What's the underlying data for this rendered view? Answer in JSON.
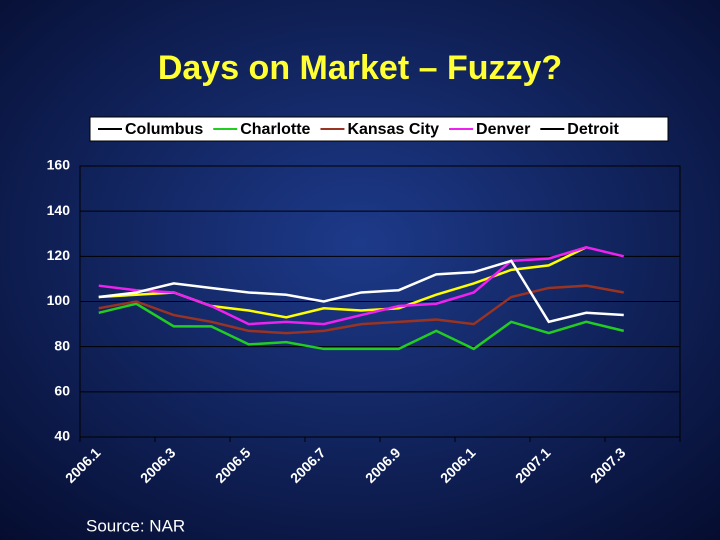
{
  "chart_data": {
    "type": "line",
    "title": "Days on Market – Fuzzy?",
    "source": "Source: NAR",
    "categories": [
      "2006.1",
      null,
      "2006.3",
      null,
      "2006.5",
      null,
      "2006.7",
      null,
      "2006.9",
      null,
      "2006.1",
      null,
      "2007.1",
      null,
      "2007.3",
      null
    ],
    "series": [
      {
        "name": "Columbus",
        "color": "#ffff00",
        "values": [
          102,
          103,
          104,
          98,
          96,
          93,
          97,
          96,
          97,
          103,
          108,
          114,
          116,
          124,
          null,
          null
        ]
      },
      {
        "name": "Charlotte",
        "color": "#22cc22",
        "values": [
          95,
          99,
          89,
          89,
          81,
          82,
          79,
          79,
          79,
          87,
          79,
          91,
          86,
          91,
          87,
          null
        ]
      },
      {
        "name": "Kansas City",
        "color": "#993322",
        "values": [
          97,
          100,
          94,
          91,
          87,
          86,
          87,
          90,
          91,
          92,
          90,
          102,
          106,
          107,
          104,
          null
        ]
      },
      {
        "name": "Denver",
        "color": "#ee22ee",
        "values": [
          107,
          105,
          104,
          98,
          90,
          91,
          90,
          94,
          98,
          99,
          104,
          118,
          119,
          124,
          120,
          null
        ]
      },
      {
        "name": "Detroit",
        "color": "#ffffff",
        "values": [
          102,
          104,
          108,
          106,
          104,
          103,
          100,
          104,
          105,
          112,
          113,
          118,
          91,
          95,
          94,
          null
        ]
      }
    ],
    "ylim": [
      40,
      160
    ],
    "yticks": [
      40,
      60,
      80,
      100,
      120,
      140,
      160
    ],
    "grid": true
  }
}
